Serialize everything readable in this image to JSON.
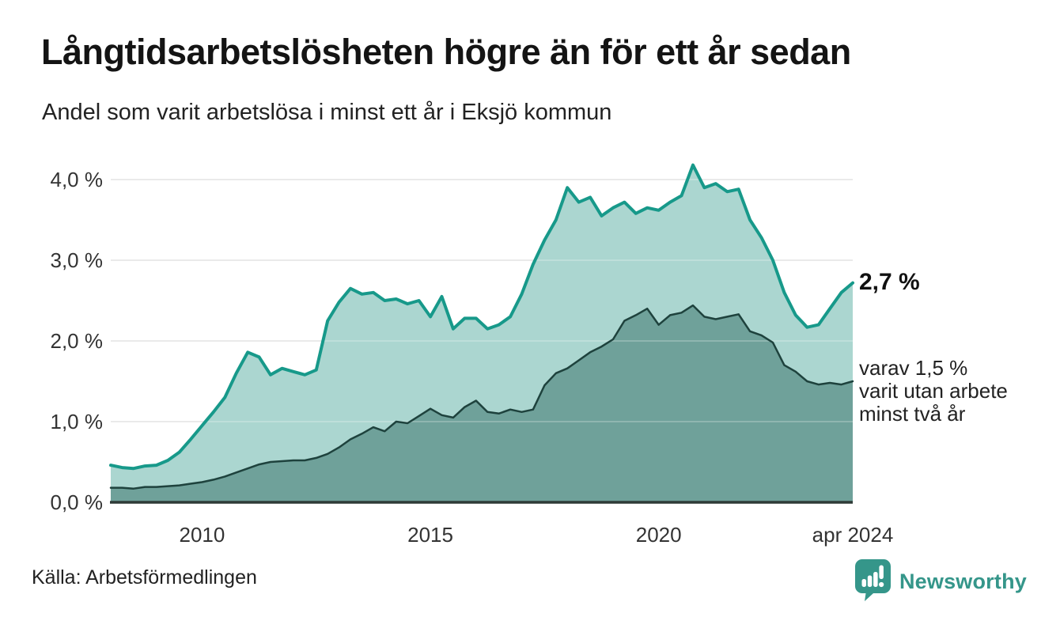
{
  "title": "Långtidsarbetslösheten högre än för ett år sedan",
  "subtitle": "Andel som varit arbetslösa i minst ett år i Eksjö kommun",
  "source": "Källa: Arbetsförmedlingen",
  "logo": {
    "text": "Newsworthy",
    "color": "#35968a"
  },
  "annotations": {
    "latest_total": "2,7 %",
    "varav_lines": [
      "varav 1,5 %",
      "varit utan arbete",
      "minst två år"
    ]
  },
  "chart_data": {
    "type": "area",
    "title": "Andel som varit arbetslösa i minst ett år i Eksjö kommun",
    "xlabel": "",
    "ylabel": "",
    "units": "%",
    "grid": true,
    "legend": "none",
    "x_domain": [
      2008.0,
      2024.25
    ],
    "ylim": [
      0,
      4.3
    ],
    "grid_color": "#dcdcdc",
    "baseline_color": "#2e3a37",
    "y_ticks": [
      {
        "value": 0,
        "label": "0,0 %"
      },
      {
        "value": 1,
        "label": "1,0 %"
      },
      {
        "value": 2,
        "label": "2,0 %"
      },
      {
        "value": 3,
        "label": "3,0 %"
      },
      {
        "value": 4,
        "label": "4,0 %"
      }
    ],
    "x_ticks": [
      {
        "value": 2010,
        "label": "2010"
      },
      {
        "value": 2015,
        "label": "2015"
      },
      {
        "value": 2020,
        "label": "2020"
      },
      {
        "value": 2024.25,
        "label": "apr 2024"
      }
    ],
    "x": [
      2008.0,
      2008.25,
      2008.5,
      2008.75,
      2009.0,
      2009.25,
      2009.5,
      2009.75,
      2010.0,
      2010.25,
      2010.5,
      2010.75,
      2011.0,
      2011.25,
      2011.5,
      2011.75,
      2012.0,
      2012.25,
      2012.5,
      2012.75,
      2013.0,
      2013.25,
      2013.5,
      2013.75,
      2014.0,
      2014.25,
      2014.5,
      2014.75,
      2015.0,
      2015.25,
      2015.5,
      2015.75,
      2016.0,
      2016.25,
      2016.5,
      2016.75,
      2017.0,
      2017.25,
      2017.5,
      2017.75,
      2018.0,
      2018.25,
      2018.5,
      2018.75,
      2019.0,
      2019.25,
      2019.5,
      2019.75,
      2020.0,
      2020.25,
      2020.5,
      2020.75,
      2021.0,
      2021.25,
      2021.5,
      2021.75,
      2022.0,
      2022.25,
      2022.5,
      2022.75,
      2023.0,
      2023.25,
      2023.5,
      2023.75,
      2024.0,
      2024.25
    ],
    "series": [
      {
        "name": "Arbetslösa minst ett år",
        "line_color": "#17998a",
        "fill_color": "#abd6d0",
        "line_width": 4,
        "values": [
          0.46,
          0.43,
          0.42,
          0.45,
          0.46,
          0.52,
          0.62,
          0.78,
          0.95,
          1.12,
          1.3,
          1.6,
          1.86,
          1.8,
          1.58,
          1.66,
          1.62,
          1.58,
          1.64,
          2.25,
          2.48,
          2.65,
          2.58,
          2.6,
          2.5,
          2.52,
          2.46,
          2.5,
          2.3,
          2.55,
          2.15,
          2.28,
          2.28,
          2.15,
          2.2,
          2.3,
          2.58,
          2.95,
          3.25,
          3.5,
          3.9,
          3.72,
          3.78,
          3.55,
          3.65,
          3.72,
          3.58,
          3.65,
          3.62,
          3.72,
          3.8,
          4.18,
          3.9,
          3.95,
          3.85,
          3.88,
          3.5,
          3.28,
          3.0,
          2.6,
          2.32,
          2.17,
          2.2,
          2.4,
          2.6,
          2.72
        ]
      },
      {
        "name": "Utan arbete minst två år",
        "line_color": "#1e423d",
        "fill_color": "#6fa19a",
        "line_width": 2.5,
        "values": [
          0.18,
          0.18,
          0.17,
          0.19,
          0.19,
          0.2,
          0.21,
          0.23,
          0.25,
          0.28,
          0.32,
          0.37,
          0.42,
          0.47,
          0.5,
          0.51,
          0.52,
          0.52,
          0.55,
          0.6,
          0.68,
          0.78,
          0.85,
          0.93,
          0.88,
          1.0,
          0.98,
          1.07,
          1.16,
          1.08,
          1.05,
          1.18,
          1.26,
          1.12,
          1.1,
          1.15,
          1.12,
          1.15,
          1.45,
          1.6,
          1.66,
          1.76,
          1.86,
          1.93,
          2.02,
          2.25,
          2.32,
          2.4,
          2.2,
          2.32,
          2.35,
          2.44,
          2.3,
          2.27,
          2.3,
          2.33,
          2.12,
          2.07,
          1.98,
          1.7,
          1.62,
          1.5,
          1.46,
          1.48,
          1.46,
          1.5
        ]
      }
    ],
    "end_labels": {
      "series_0": "2,7 %",
      "series_1": "varav 1,5 % varit utan arbete minst två år"
    }
  }
}
